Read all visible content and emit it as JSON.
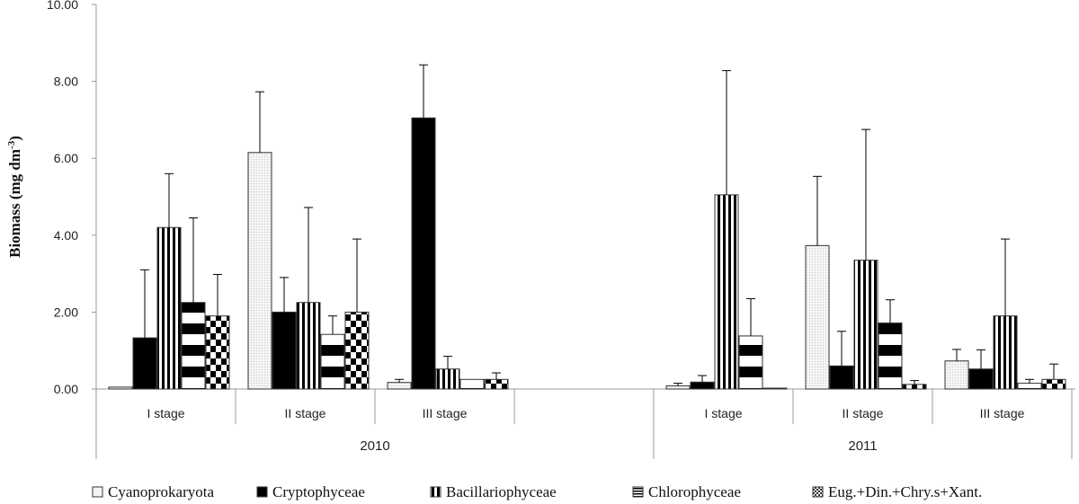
{
  "chart_data": {
    "type": "bar",
    "ylabel": "Biomass (mg dm",
    "ylabel_sup": "-3",
    "ylabel_end": ")",
    "ylim": [
      0,
      10
    ],
    "yticks": [
      "0.00",
      "2.00",
      "4.00",
      "6.00",
      "8.00",
      "10.00"
    ],
    "grid": false,
    "legend_position": "bottom",
    "groups": [
      {
        "year": "2010",
        "categories": [
          "I  stage",
          "II stage",
          "III stage",
          ""
        ]
      },
      {
        "year": "2011",
        "categories": [
          "I  stage",
          "II stage",
          "III stage"
        ]
      }
    ],
    "series": [
      {
        "name": "Cyanoprokaryota",
        "pattern": "dotted-light",
        "values": [
          0.05,
          6.15,
          0.17,
          null,
          0.08,
          3.73,
          0.73
        ],
        "errors": [
          0.0,
          1.58,
          0.08,
          null,
          0.07,
          1.8,
          0.3
        ]
      },
      {
        "name": "Cryptophyceae",
        "pattern": "solid-black",
        "values": [
          1.33,
          2.0,
          7.05,
          null,
          0.18,
          0.6,
          0.52
        ],
        "errors": [
          1.77,
          0.9,
          1.38,
          null,
          0.17,
          0.9,
          0.5
        ]
      },
      {
        "name": "Bacillariophyceae",
        "pattern": "vertical-stripes",
        "values": [
          4.2,
          2.25,
          0.52,
          null,
          5.05,
          3.35,
          1.9
        ],
        "errors": [
          1.4,
          2.47,
          0.33,
          null,
          3.23,
          3.4,
          2.0
        ]
      },
      {
        "name": "Chlorophyceae",
        "pattern": "horizontal-stripes",
        "values": [
          2.25,
          1.42,
          0.25,
          null,
          1.38,
          1.72,
          0.15
        ],
        "errors": [
          2.2,
          0.48,
          0.0,
          null,
          0.97,
          0.6,
          0.1
        ]
      },
      {
        "name": "Eug.+Din.+Chry.s+Xant.",
        "pattern": "checker",
        "values": [
          1.9,
          2.0,
          0.25,
          null,
          0.02,
          0.12,
          0.25
        ],
        "errors": [
          1.08,
          1.9,
          0.17,
          null,
          0.0,
          0.1,
          0.4
        ]
      }
    ]
  }
}
